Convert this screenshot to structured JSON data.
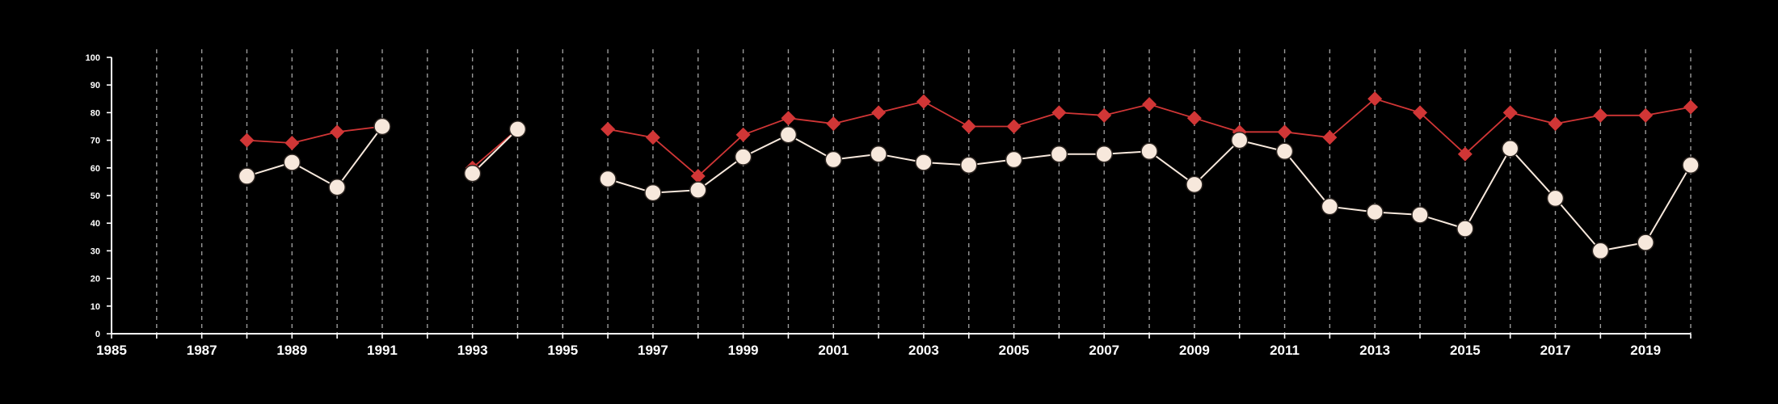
{
  "chart_data": {
    "type": "line",
    "title": "",
    "xlabel": "",
    "ylabel": "",
    "xlim": [
      1985,
      2020
    ],
    "ylim": [
      0,
      100
    ],
    "y_ticks": [
      0,
      10,
      20,
      30,
      40,
      50,
      60,
      70,
      80,
      90,
      100
    ],
    "x_tick_labels": [
      1985,
      1987,
      1989,
      1991,
      1993,
      1995,
      1997,
      1999,
      2001,
      2003,
      2005,
      2007,
      2009,
      2011,
      2013,
      2015,
      2017,
      2019
    ],
    "grid": "vertical dashed lines at each year",
    "legend": "none",
    "series": [
      {
        "color": "#d13636",
        "marker": "diamond",
        "points": [
          [
            1988,
            70
          ],
          [
            1989,
            69
          ],
          [
            1990,
            73
          ],
          [
            1991,
            75
          ],
          [
            1993,
            60
          ],
          [
            1994,
            74
          ],
          [
            1996,
            74
          ],
          [
            1997,
            71
          ],
          [
            1998,
            57
          ],
          [
            1999,
            72
          ],
          [
            2000,
            78
          ],
          [
            2001,
            76
          ],
          [
            2002,
            80
          ],
          [
            2003,
            84
          ],
          [
            2004,
            75
          ],
          [
            2005,
            75
          ],
          [
            2006,
            80
          ],
          [
            2007,
            79
          ],
          [
            2008,
            83
          ],
          [
            2009,
            78
          ],
          [
            2010,
            73
          ],
          [
            2011,
            73
          ],
          [
            2012,
            71
          ],
          [
            2013,
            85
          ],
          [
            2014,
            80
          ],
          [
            2015,
            65
          ],
          [
            2016,
            80
          ],
          [
            2017,
            76
          ],
          [
            2018,
            79
          ],
          [
            2019,
            79
          ],
          [
            2020,
            82
          ]
        ]
      },
      {
        "color": "#f7e8dc",
        "marker": "circle",
        "points": [
          [
            1988,
            57
          ],
          [
            1989,
            62
          ],
          [
            1990,
            53
          ],
          [
            1991,
            75
          ],
          [
            1993,
            58
          ],
          [
            1994,
            74
          ],
          [
            1996,
            56
          ],
          [
            1997,
            51
          ],
          [
            1998,
            52
          ],
          [
            1999,
            64
          ],
          [
            2000,
            72
          ],
          [
            2001,
            63
          ],
          [
            2002,
            65
          ],
          [
            2003,
            62
          ],
          [
            2004,
            61
          ],
          [
            2005,
            63
          ],
          [
            2006,
            65
          ],
          [
            2007,
            65
          ],
          [
            2008,
            66
          ],
          [
            2009,
            54
          ],
          [
            2010,
            70
          ],
          [
            2011,
            66
          ],
          [
            2012,
            46
          ],
          [
            2013,
            44
          ],
          [
            2014,
            43
          ],
          [
            2015,
            38
          ],
          [
            2016,
            67
          ],
          [
            2017,
            49
          ],
          [
            2018,
            30
          ],
          [
            2019,
            33
          ],
          [
            2020,
            61
          ]
        ]
      }
    ]
  }
}
